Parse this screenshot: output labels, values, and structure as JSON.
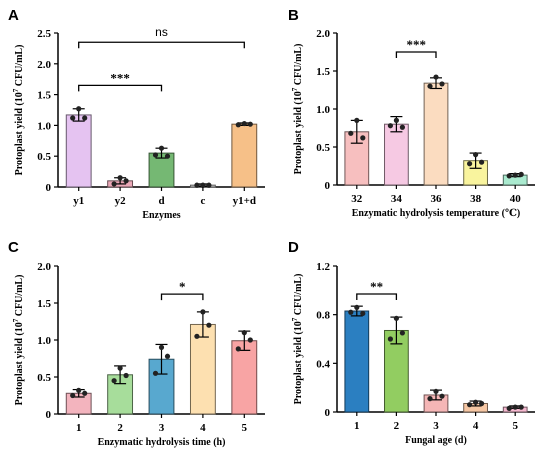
{
  "chart_data": [
    {
      "panel": "A",
      "type": "bar",
      "categories": [
        "y1",
        "y2",
        "d",
        "c",
        "y1+d"
      ],
      "values": [
        1.17,
        0.1,
        0.55,
        0.03,
        1.02
      ],
      "errors": [
        0.1,
        0.05,
        0.08,
        0.02,
        0.02
      ],
      "points": [
        [
          1.27,
          1.12,
          1.12
        ],
        [
          0.15,
          0.05,
          0.1
        ],
        [
          0.63,
          0.52,
          0.5
        ],
        [
          0.03,
          0.03,
          0.03
        ],
        [
          1.03,
          1.01,
          1.02
        ]
      ],
      "colors": [
        "#e5c3f1",
        "#eba9b8",
        "#75b873",
        "#cfcfcf",
        "#f6c088"
      ],
      "xlabel": "Enzymes",
      "ylabel_main": "Protoplast yield (10",
      "ylabel_exp": "7",
      "ylabel_unit": " CFU/mL)",
      "yticks": [
        "0",
        "0.5",
        "1.0",
        "1.5",
        "2.0",
        "2.5"
      ],
      "ylim": [
        0,
        2.5
      ],
      "significance": [
        {
          "from": 0,
          "to": 2,
          "y": 1.65,
          "label": "***"
        },
        {
          "from": 0,
          "to": 4,
          "y": 2.35,
          "label": "ns"
        }
      ]
    },
    {
      "panel": "B",
      "type": "bar",
      "categories": [
        "32",
        "34",
        "36",
        "38",
        "40"
      ],
      "values": [
        0.7,
        0.8,
        1.34,
        0.32,
        0.13
      ],
      "errors": [
        0.15,
        0.1,
        0.07,
        0.1,
        0.02
      ],
      "points": [
        [
          0.85,
          0.68,
          0.62
        ],
        [
          0.85,
          0.78,
          0.76
        ],
        [
          1.42,
          1.3,
          1.33
        ],
        [
          0.4,
          0.28,
          0.3
        ],
        [
          0.13,
          0.12,
          0.14
        ]
      ],
      "colors": [
        "#f7bfbf",
        "#f6c9e3",
        "#fbdcc0",
        "#f9f49e",
        "#aaeacf"
      ],
      "xlabel": "Enzymatic hydrolysis temperature (℃)",
      "ylabel_main": "Protoplast yield (10",
      "ylabel_exp": "7",
      "ylabel_unit": " CFU/mL)",
      "yticks": [
        "0",
        "0.5",
        "1.0",
        "1.5",
        "2.0"
      ],
      "ylim": [
        0,
        2.0
      ],
      "significance": [
        {
          "from": 1,
          "to": 2,
          "y": 1.75,
          "label": "***"
        }
      ]
    },
    {
      "panel": "C",
      "type": "bar",
      "categories": [
        "1",
        "2",
        "3",
        "4",
        "5"
      ],
      "values": [
        0.28,
        0.53,
        0.74,
        1.21,
        0.99
      ],
      "errors": [
        0.05,
        0.12,
        0.2,
        0.17,
        0.13
      ],
      "points": [
        [
          0.32,
          0.25,
          0.28
        ],
        [
          0.62,
          0.45,
          0.52
        ],
        [
          0.9,
          0.55,
          0.78
        ],
        [
          1.38,
          1.05,
          1.2
        ],
        [
          1.1,
          0.88,
          1.0
        ]
      ],
      "colors": [
        "#f3b4be",
        "#a7dd9b",
        "#58a8cf",
        "#fde0b0",
        "#f8a4a4"
      ],
      "xlabel": "Enzymatic hydrolysis time (h)",
      "ylabel_main": "Protoplast yield (10",
      "ylabel_exp": "7",
      "ylabel_unit": " CFU/mL)",
      "yticks": [
        "0",
        "0.5",
        "1.0",
        "1.5",
        "2.0"
      ],
      "ylim": [
        0,
        2.0
      ],
      "significance": [
        {
          "from": 2,
          "to": 3,
          "y": 1.62,
          "label": "*"
        }
      ]
    },
    {
      "panel": "D",
      "type": "bar",
      "categories": [
        "1",
        "2",
        "3",
        "4",
        "5"
      ],
      "values": [
        0.83,
        0.67,
        0.14,
        0.07,
        0.04
      ],
      "errors": [
        0.04,
        0.11,
        0.04,
        0.02,
        0.01
      ],
      "points": [
        [
          0.86,
          0.82,
          0.81
        ],
        [
          0.77,
          0.6,
          0.65
        ],
        [
          0.17,
          0.11,
          0.13
        ],
        [
          0.08,
          0.06,
          0.07
        ],
        [
          0.04,
          0.03,
          0.04
        ]
      ],
      "colors": [
        "#2b7fc1",
        "#92cd61",
        "#f5b6b6",
        "#f6c7a4",
        "#f5b8cf"
      ],
      "xlabel": "Fungal age (d)",
      "ylabel_main": "Protoplast yield (10",
      "ylabel_exp": "7",
      "ylabel_unit": " CFU/mL)",
      "yticks": [
        "0",
        "0.4",
        "0.8",
        "1.2"
      ],
      "ylim": [
        0,
        1.2
      ],
      "significance": [
        {
          "from": 0,
          "to": 1,
          "y": 0.97,
          "label": "**"
        }
      ]
    }
  ]
}
